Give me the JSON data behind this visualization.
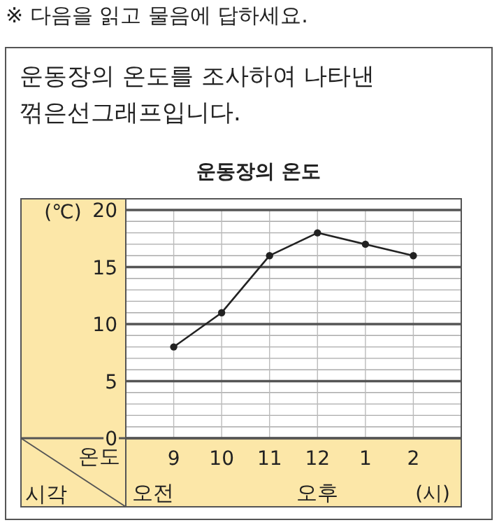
{
  "chart_data": {
    "type": "line",
    "title": "운동장의 온도",
    "ylabel": "(℃)",
    "xlabel": "(시)",
    "categories": [
      "9",
      "10",
      "11",
      "12",
      "1",
      "2"
    ],
    "series": [
      {
        "color": "#222222",
        "values": [
          8,
          11,
          16,
          18,
          17,
          16
        ]
      }
    ],
    "ylim": [
      0,
      20
    ],
    "yticks": [
      0,
      5,
      10,
      15,
      20
    ],
    "grid": true,
    "marker": "circle",
    "line_style": "solid",
    "annotations": [
      "※ 다음을 읽고 물음에 답하세요.",
      "운동장의 온도를 조사하여 나타낸 꺾은선그래프입니다.",
      "온도",
      "시각",
      "오전",
      "오후"
    ]
  }
}
